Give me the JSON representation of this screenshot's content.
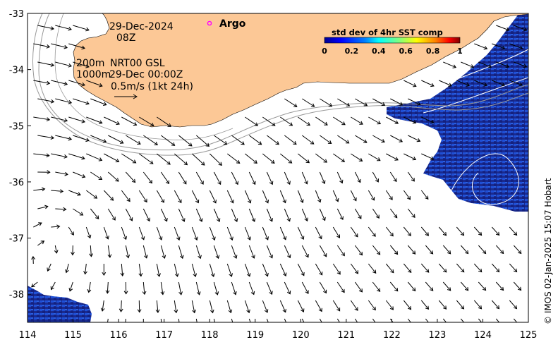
{
  "map": {
    "date_label": "29-Dec-2024",
    "time_label": "08Z",
    "depth_label_1": "200m",
    "depth_label_2": "1000m",
    "product_label": "NRT00 GSL",
    "product_time": "29-Dec 00:00Z",
    "scale_label": "0.5m/s (1kt 24h)",
    "argo_label": "Argo",
    "credit": "© IMOS 02-Jan-2025 15:07 Hobart"
  },
  "colorbar": {
    "title": "std dev of 4hr SST comp",
    "ticks": [
      "0",
      "0.2",
      "0.4",
      "0.6",
      "0.8",
      "1"
    ],
    "colors": [
      "#00008f",
      "#0000ff",
      "#0080ff",
      "#00ffff",
      "#80ff80",
      "#ffff00",
      "#ff8000",
      "#ff0000",
      "#800000"
    ]
  },
  "axes": {
    "x_ticks": [
      "114",
      "115",
      "116",
      "117",
      "118",
      "119",
      "120",
      "121",
      "122",
      "123",
      "124",
      "125"
    ],
    "y_ticks": [
      "-33",
      "-34",
      "-35",
      "-36",
      "-37",
      "-38"
    ],
    "lon_range": [
      114,
      125
    ],
    "lat_range": [
      -38.5,
      -33
    ]
  },
  "colors": {
    "land": "#fcc896",
    "sst_dark": "#1a2b8f",
    "sst_mid": "#1f4fd6",
    "argo": "#ff00ff",
    "isobath": "#999999"
  }
}
